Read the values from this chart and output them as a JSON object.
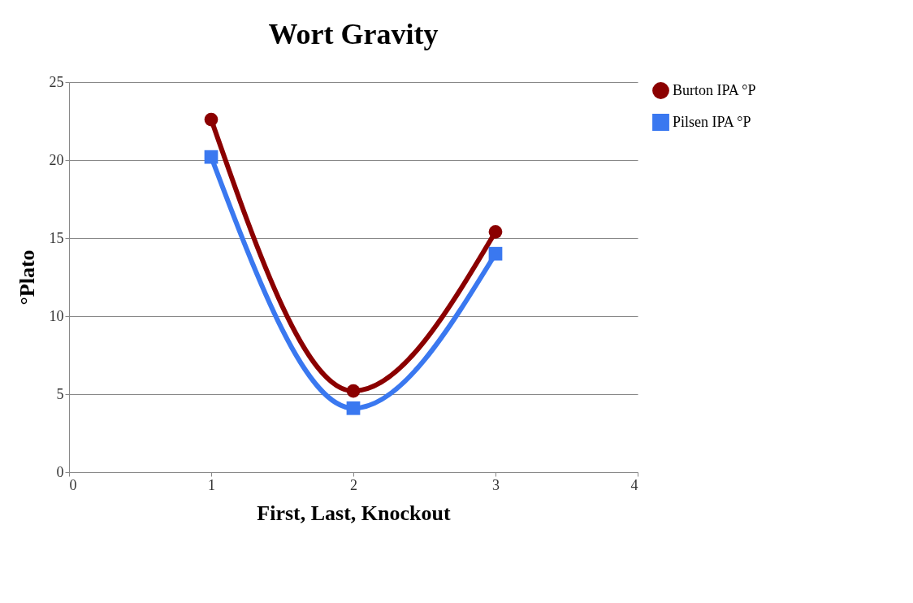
{
  "chart_data": {
    "type": "line",
    "title": "Wort Gravity",
    "xlabel": "First, Last, Knockout",
    "ylabel": "°Plato",
    "x": [
      1,
      2,
      3
    ],
    "series": [
      {
        "name": "Burton IPA °P",
        "color": "#8b0000",
        "marker": "circle",
        "values": [
          22.6,
          5.2,
          15.4
        ]
      },
      {
        "name": "Pilsen IPA °P",
        "color": "#3a78f0",
        "marker": "square",
        "values": [
          20.2,
          4.1,
          14.0
        ]
      }
    ],
    "xlim": [
      0,
      4
    ],
    "xticks": [
      0,
      1,
      2,
      3,
      4
    ],
    "ylim": [
      0,
      25
    ],
    "yticks": [
      0,
      5,
      10,
      15,
      20,
      25
    ],
    "grid": "y",
    "legend": "right",
    "line_style": "solid"
  }
}
